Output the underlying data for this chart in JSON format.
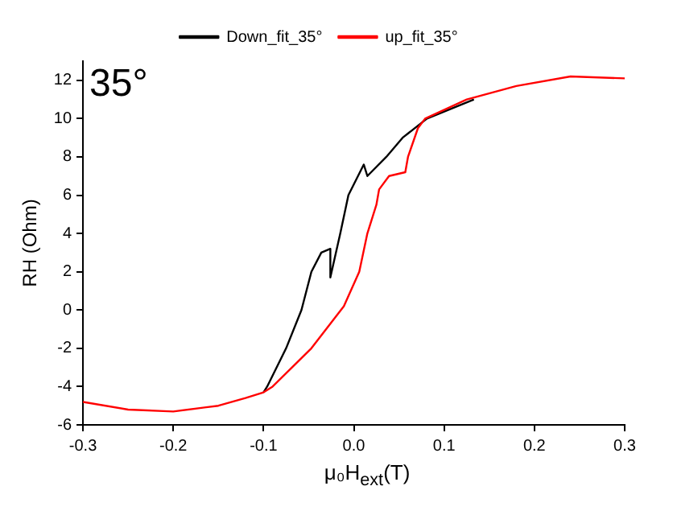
{
  "chart_data": {
    "type": "line",
    "xlabel": "μ₀H$_{ext}$(T)",
    "ylabel": "RH (Ohm)",
    "annotations": [
      "35°"
    ],
    "xlim": [
      -0.3,
      0.3
    ],
    "xticks": [
      -0.3,
      -0.2,
      -0.1,
      {
        "value": 0,
        "label": "0.0"
      },
      0.1,
      0.2,
      0.3
    ],
    "ylim": [
      -6,
      13
    ],
    "yticks": [
      -6,
      -4,
      -2,
      0,
      2,
      4,
      6,
      8,
      10,
      12
    ],
    "grid": false,
    "legend": "top",
    "marker": "none",
    "line_style": "solid",
    "series": [
      {
        "name": "Down_fit_35°",
        "color": "#000000",
        "x": [
          -0.1,
          -0.096,
          -0.075,
          -0.058,
          -0.047,
          -0.036,
          -0.026,
          -0.026,
          -0.015,
          -0.006,
          0.011,
          0.015,
          0.036,
          0.054,
          0.081,
          0.133
        ],
        "values": [
          -4.3,
          -4,
          -2,
          0,
          2,
          3,
          3.2,
          1.7,
          4,
          6,
          7.6,
          7,
          8,
          9,
          10,
          11
        ]
      },
      {
        "name": "up_fit_35°",
        "color": "#ff0000",
        "x": [
          -0.3,
          -0.25,
          -0.2,
          -0.15,
          -0.12,
          -0.1,
          -0.09,
          -0.047,
          -0.011,
          0.006,
          0.015,
          0.025,
          0.028,
          0.039,
          0.057,
          0.06,
          0.071,
          0.079,
          0.125,
          0.18,
          0.24,
          0.3
        ],
        "values": [
          -4.8,
          -5.2,
          -5.3,
          -5.0,
          -4.6,
          -4.3,
          -4,
          -2,
          0.2,
          2,
          4,
          5.5,
          6.3,
          7,
          7.2,
          8,
          9.5,
          10,
          11,
          11.7,
          12.2,
          12.1
        ]
      }
    ]
  }
}
